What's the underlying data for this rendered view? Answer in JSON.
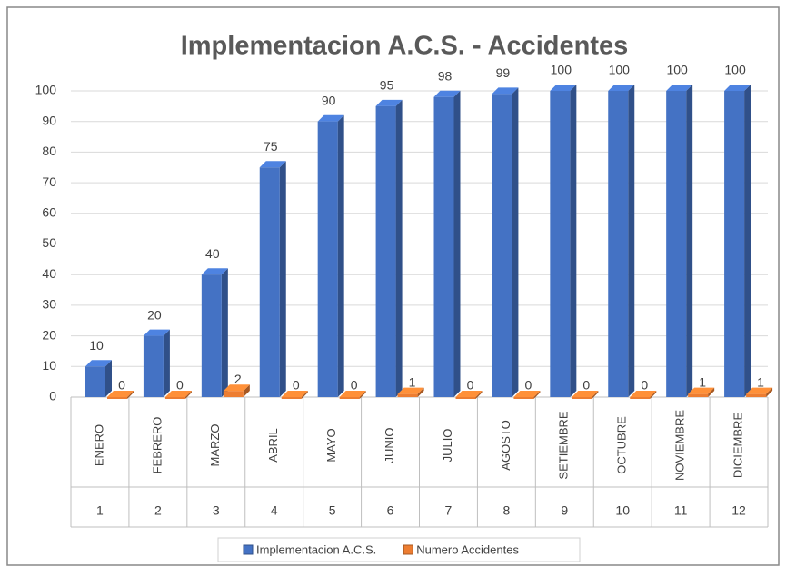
{
  "chart_data": {
    "type": "bar3d",
    "title": "Implementacion A.C.S. - Accidentes",
    "categories": [
      "ENERO",
      "FEBRERO",
      "MARZO",
      "ABRIL",
      "MAYO",
      "JUNIO",
      "JULIO",
      "AGOSTO",
      "SETIEMBRE",
      "OCTUBRE",
      "NOVIEMBRE",
      "DICIEMBRE"
    ],
    "category_groups": [
      1,
      2,
      3,
      4,
      5,
      6,
      7,
      8,
      9,
      10,
      11,
      12
    ],
    "series": [
      {
        "name": "Implementacion A.C.S.",
        "color": "#4472c4",
        "values": [
          10,
          20,
          40,
          75,
          90,
          95,
          98,
          99,
          100,
          100,
          100,
          100
        ]
      },
      {
        "name": "Numero Accidentes",
        "color": "#ed7d31",
        "values": [
          0,
          0,
          2,
          0,
          0,
          1,
          0,
          0,
          0,
          0,
          1,
          1
        ]
      }
    ],
    "ylim": [
      0,
      100
    ],
    "yticks": [
      0,
      10,
      20,
      30,
      40,
      50,
      60,
      70,
      80,
      90,
      100
    ],
    "grid": true,
    "legend": "bottom"
  }
}
